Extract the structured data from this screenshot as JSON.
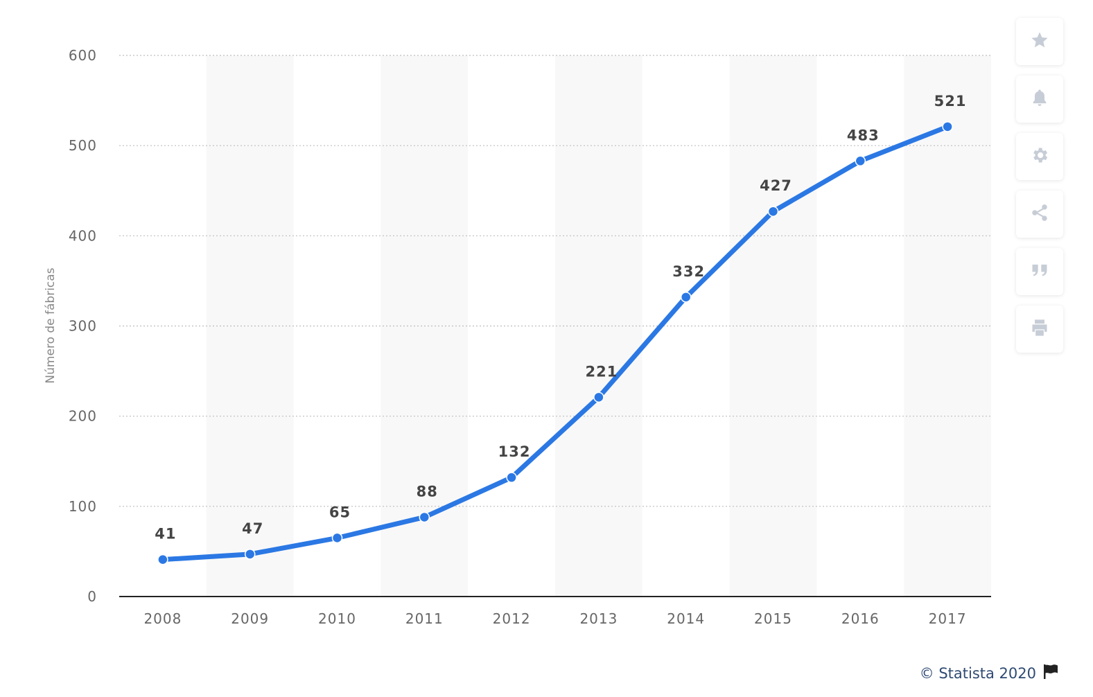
{
  "chart_data": {
    "type": "line",
    "categories": [
      "2008",
      "2009",
      "2010",
      "2011",
      "2012",
      "2013",
      "2014",
      "2015",
      "2016",
      "2017"
    ],
    "series": [
      {
        "values": [
          41,
          47,
          65,
          88,
          132,
          221,
          332,
          427,
          483,
          521
        ]
      }
    ],
    "ylabel": "Número de fábricas",
    "ylim": [
      0,
      600
    ],
    "yticks": [
      "0",
      "100",
      "200",
      "300",
      "400",
      "500",
      "600"
    ],
    "grid": "horizontal dotted",
    "line_color": "#2b78e4",
    "band_color": "#f8f8f8"
  },
  "toolbar": {
    "buttons": [
      {
        "icon": "star-icon"
      },
      {
        "icon": "bell-icon"
      },
      {
        "icon": "gear-icon"
      },
      {
        "icon": "share-icon"
      },
      {
        "icon": "quote-icon"
      },
      {
        "icon": "print-icon"
      }
    ]
  },
  "credit": {
    "text": "© Statista 2020",
    "icon": "flag-icon"
  }
}
